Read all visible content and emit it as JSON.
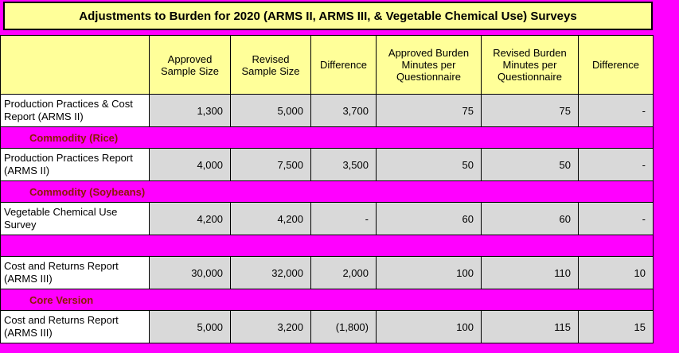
{
  "title": "Adjustments to Burden for 2020 (ARMS II, ARMS III, & Vegetable Chemical Use) Surveys",
  "colors": {
    "page_background": "#FF00FF",
    "title_and_header_fill": "#FFFF99",
    "value_cell_fill": "#D9D9D9",
    "label_cell_fill": "#FFFFFF",
    "band_fill": "#FF00FF",
    "band_text": "#8B1A00",
    "border": "#000000"
  },
  "table": {
    "headers": [
      "",
      "Approved Sample Size",
      "Revised Sample Size",
      "Difference",
      "Approved Burden Minutes per Questionnaire",
      "Revised Burden Minutes per Questionnaire",
      "Difference"
    ],
    "rows": [
      {
        "type": "data",
        "label": "Production Practices & Cost Report (ARMS II)",
        "values": [
          "1,300",
          "5,000",
          "3,700",
          "75",
          "75",
          "-"
        ]
      },
      {
        "type": "band",
        "label": "Commodity (Rice)"
      },
      {
        "type": "data",
        "label": "Production Practices Report (ARMS II)",
        "values": [
          "4,000",
          "7,500",
          "3,500",
          "50",
          "50",
          "-"
        ]
      },
      {
        "type": "band",
        "label": "Commodity (Soybeans)"
      },
      {
        "type": "data",
        "label": "Vegetable Chemical Use Survey",
        "values": [
          "4,200",
          "4,200",
          "-",
          "60",
          "60",
          "-"
        ]
      },
      {
        "type": "band",
        "label": ""
      },
      {
        "type": "data",
        "label": "Cost and Returns Report (ARMS III)",
        "values": [
          "30,000",
          "32,000",
          "2,000",
          "100",
          "110",
          "10"
        ]
      },
      {
        "type": "band",
        "label": "Core Version"
      },
      {
        "type": "data",
        "label": "Cost and Returns Report (ARMS III)",
        "values": [
          "5,000",
          "3,200",
          "(1,800)",
          "100",
          "115",
          "15"
        ]
      }
    ]
  }
}
